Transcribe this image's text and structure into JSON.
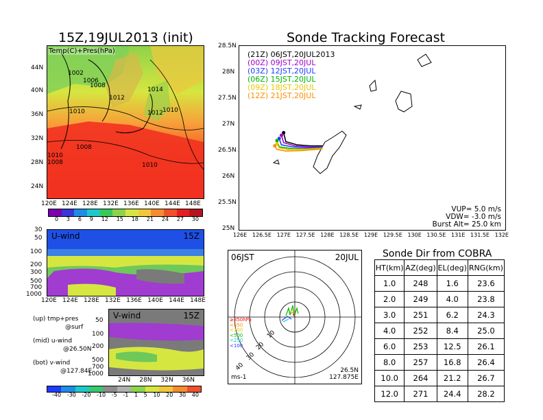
{
  "left": {
    "map_title": "15Z,19JUL2013 (init)",
    "map_label": "Temp(C)+Pres(hPa)",
    "lat_ticks": [
      "44N",
      "40N",
      "36N",
      "32N",
      "28N",
      "24N"
    ],
    "lon_ticks": [
      "120E",
      "124E",
      "128E",
      "132E",
      "136E",
      "140E",
      "144E",
      "148E"
    ],
    "pressure_labels": [
      "1002",
      "1006",
      "1008",
      "1012",
      "1010",
      "1010",
      "1014",
      "1012",
      "1010",
      "1008",
      "1012",
      "1008",
      "1010",
      "1010"
    ],
    "temp_colorbar": [
      "0",
      "3",
      "6",
      "9",
      "12",
      "15",
      "18",
      "21",
      "24",
      "27",
      "30"
    ],
    "uwind_title": "U-wind",
    "uwind_time": "15Z",
    "uwind_levels": [
      "30",
      "50",
      "100",
      "200",
      "300",
      "500",
      "700",
      "1000"
    ],
    "uwind_lon_ticks": [
      "120E",
      "124E",
      "128E",
      "132E",
      "136E",
      "140E",
      "144E",
      "148E"
    ],
    "vwind_title": "V-wind",
    "vwind_time": "15Z",
    "vwind_levels": [
      "30",
      "50",
      "100",
      "200",
      "300",
      "500",
      "700",
      "1000"
    ],
    "vwind_lat_ticks": [
      "24N",
      "28N",
      "32N",
      "36N"
    ],
    "legend_up": "(up) tmp+pres",
    "legend_up_sub": "@surf",
    "legend_mid": "(mid) u-wind",
    "legend_mid_sub": "@26.50N",
    "legend_bot": "(bot) v-wind",
    "legend_bot_sub": "@127.84E",
    "wind_colorbar": [
      "-40",
      "-30",
      "-20",
      "-10",
      "-5",
      "-1",
      "1",
      "5",
      "10",
      "20",
      "30",
      "40"
    ]
  },
  "tracking": {
    "title": "Sonde Tracking Forecast",
    "lat_ticks": [
      "28.5N",
      "28N",
      "27.5N",
      "27N",
      "26.5N",
      "26N",
      "25.5N",
      "25N"
    ],
    "lon_ticks": [
      "126E",
      "126.5E",
      "127E",
      "127.5E",
      "128E",
      "128.5E",
      "129E",
      "129.5E",
      "130E",
      "130.5E",
      "131E",
      "131.5E",
      "132E"
    ],
    "legend": [
      {
        "label": "(21Z) 06JST,20JUL2013",
        "color": "#000000"
      },
      {
        "label": "(00Z) 09JST,20JUL",
        "color": "#a000c8"
      },
      {
        "label": "(03Z) 12JST,20JUL",
        "color": "#1e3cff"
      },
      {
        "label": "(06Z) 15JST,20JUL",
        "color": "#00b400"
      },
      {
        "label": "(09Z) 18JST,20JUL",
        "color": "#e6c800"
      },
      {
        "label": "(12Z) 21JST,20JUL",
        "color": "#ff8c00"
      }
    ],
    "vup": "VUP= 5.0 m/s",
    "vdw": "VDW= -3.0 m/s",
    "burst": "Burst Alt= 25.0 km"
  },
  "polar": {
    "time_left": "06JST",
    "time_right": "20JUL",
    "range_labels": [
      "10",
      "20",
      "30",
      "40"
    ],
    "level_labels": [
      {
        "text": "≥850hPa",
        "color": "#ff0000"
      },
      {
        "text": "<850",
        "color": "#ff8c00"
      },
      {
        "text": "<700",
        "color": "#e6c800"
      },
      {
        "text": "<500",
        "color": "#00b400"
      },
      {
        "text": "<250",
        "color": "#00c8c8"
      },
      {
        "text": "<100",
        "color": "#1e3cff"
      }
    ],
    "units": "ms-1",
    "lat": "26.5N",
    "lon": "127.875E"
  },
  "sonde_dir": {
    "title": "Sonde Dir from COBRA",
    "headers": [
      "HT(km)",
      "AZ(deg)",
      "EL(deg)",
      "RNG(km)"
    ],
    "rows": [
      [
        "1.0",
        "248",
        "1.6",
        "23.6"
      ],
      [
        "2.0",
        "249",
        "4.0",
        "23.8"
      ],
      [
        "3.0",
        "251",
        "6.2",
        "24.3"
      ],
      [
        "4.0",
        "252",
        "8.4",
        "25.0"
      ],
      [
        "6.0",
        "253",
        "12.5",
        "26.1"
      ],
      [
        "8.0",
        "257",
        "16.8",
        "26.4"
      ],
      [
        "10.0",
        "264",
        "21.2",
        "26.7"
      ],
      [
        "12.0",
        "271",
        "24.4",
        "28.2"
      ]
    ]
  },
  "chart_data": [
    {
      "type": "table",
      "title": "Sonde Dir from COBRA",
      "columns": [
        "HT(km)",
        "AZ(deg)",
        "EL(deg)",
        "RNG(km)"
      ],
      "rows": [
        [
          1.0,
          248,
          1.6,
          23.6
        ],
        [
          2.0,
          249,
          4.0,
          23.8
        ],
        [
          3.0,
          251,
          6.2,
          24.3
        ],
        [
          4.0,
          252,
          8.4,
          25.0
        ],
        [
          6.0,
          253,
          12.5,
          26.1
        ],
        [
          8.0,
          257,
          16.8,
          26.4
        ],
        [
          10.0,
          264,
          21.2,
          26.7
        ],
        [
          12.0,
          271,
          24.4,
          28.2
        ]
      ]
    },
    {
      "type": "line",
      "title": "Sonde Tracking Forecast",
      "xlim": [
        126,
        132
      ],
      "ylim": [
        25,
        28.5
      ],
      "series": [
        {
          "name": "(21Z) 06JST,20JUL2013",
          "color": "#000000",
          "x": [
            127.875,
            127.6,
            127.3,
            127.05,
            127.0
          ],
          "y": [
            26.6,
            26.6,
            26.62,
            26.68,
            26.85
          ]
        },
        {
          "name": "(00Z) 09JST,20JUL",
          "color": "#a000c8",
          "x": [
            127.875,
            127.55,
            127.25,
            127.0,
            126.95
          ],
          "y": [
            26.58,
            26.58,
            26.6,
            26.66,
            26.8
          ]
        },
        {
          "name": "(03Z) 12JST,20JUL",
          "color": "#1e3cff",
          "x": [
            127.875,
            127.5,
            127.2,
            126.95,
            126.9
          ],
          "y": [
            26.57,
            26.56,
            26.58,
            26.62,
            26.74
          ]
        },
        {
          "name": "(06Z) 15JST,20JUL",
          "color": "#00b400",
          "x": [
            127.875,
            127.45,
            127.15,
            126.9,
            126.85
          ],
          "y": [
            26.56,
            26.54,
            26.55,
            26.58,
            26.7
          ]
        },
        {
          "name": "(09Z) 18JST,20JUL",
          "color": "#e6c800",
          "x": [
            127.875,
            127.4,
            127.1,
            126.9,
            126.85
          ],
          "y": [
            26.55,
            26.53,
            26.53,
            26.56,
            26.64
          ]
        },
        {
          "name": "(12Z) 21JST,20JUL",
          "color": "#ff8c00",
          "x": [
            127.875,
            127.4,
            127.05,
            126.85,
            126.8
          ],
          "y": [
            26.54,
            26.51,
            26.5,
            26.53,
            26.6
          ]
        }
      ]
    }
  ]
}
